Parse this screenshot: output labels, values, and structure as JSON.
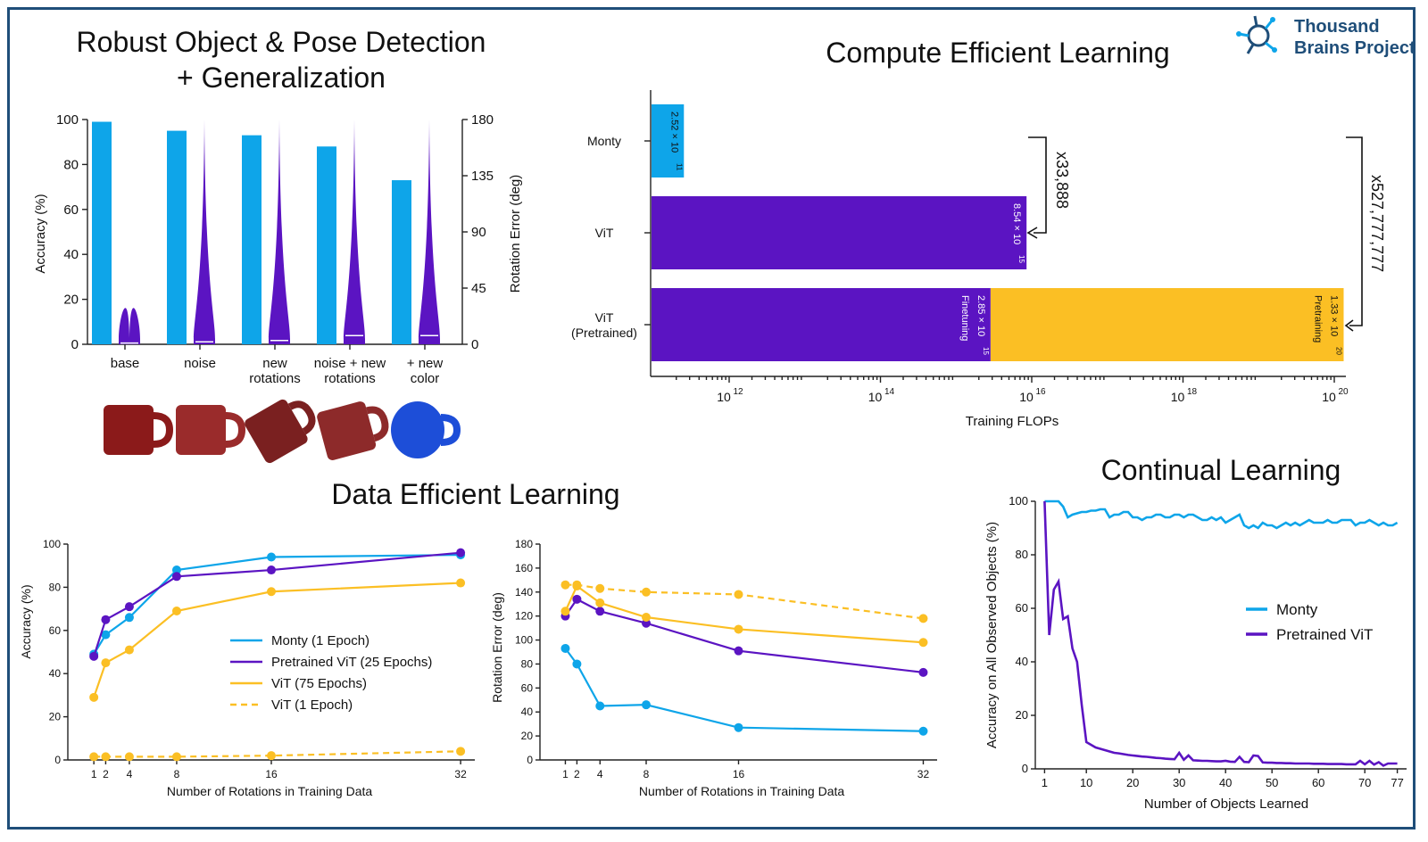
{
  "brand": {
    "line1": "Thousand",
    "line2": "Brains Project",
    "color": "#1f4e79"
  },
  "colors": {
    "monty": "#0ea5e9",
    "vit": "#5b14c2",
    "vit75": "#fbbf24",
    "pretraining": "#fbbf24"
  },
  "chart_data": [
    {
      "id": "robust",
      "type": "bar",
      "title": "Robust Object & Pose Detection",
      "title2": "+ Generalization",
      "ylabel": "Accuracy (%)",
      "y2label": "Rotation Error (deg)",
      "ylim": [
        0,
        100
      ],
      "y2lim": [
        0,
        180
      ],
      "yticks": [
        "0",
        "20",
        "40",
        "60",
        "80",
        "100"
      ],
      "y2ticks": [
        "0",
        "45",
        "90",
        "135",
        "180"
      ],
      "categories": [
        "base",
        "noise",
        "new\nrotations",
        "noise + new\nrotations",
        "+ new\ncolor"
      ],
      "series": [
        {
          "values": [
            99,
            95,
            93,
            88,
            73
          ]
        }
      ],
      "violin_median_deg": [
        1,
        2,
        3,
        7,
        7
      ],
      "violin_max_deg": [
        5,
        180,
        180,
        180,
        180
      ]
    },
    {
      "id": "compute",
      "type": "bar",
      "orientation": "horizontal",
      "title": "Compute Efficient Learning",
      "xlabel": "Training FLOPs",
      "x_scale": "log",
      "xlim": [
        100000000000.0,
        3e+20
      ],
      "xticks": [
        "12",
        "14",
        "16",
        "18",
        "20"
      ],
      "categories": [
        "Monty",
        "ViT",
        "ViT\n(Pretrained)"
      ],
      "bars": [
        {
          "category": "Monty",
          "value": 252000000000.0,
          "label": "2.52 × 10",
          "exp": "11"
        },
        {
          "category": "ViT",
          "value": 8540000000000000.0,
          "label": "8.54 × 10",
          "exp": "15"
        },
        {
          "category": "ViT\n(Pretrained)",
          "value": 2850000000000000.0,
          "label": "2.85 × 10",
          "exp": "15",
          "tag": "Finetuning"
        },
        {
          "category": "ViT\n(Pretrained)",
          "value": 1.33e+20,
          "label": "1.33 × 10",
          "exp": "20",
          "tag": "Pretraining"
        }
      ],
      "annotations": [
        "x33,888",
        "x527,777,777"
      ]
    },
    {
      "id": "data-acc",
      "type": "line",
      "section_title": "Data Efficient Learning",
      "xlabel": "Number of Rotations in Training Data",
      "ylabel": "Accuracy (%)",
      "ylim": [
        0,
        100
      ],
      "x": [
        1,
        2,
        4,
        8,
        16,
        32
      ],
      "xticks": [
        "1",
        "2",
        "4",
        "8",
        "16",
        "32"
      ],
      "yticks": [
        "0",
        "20",
        "40",
        "60",
        "80",
        "100"
      ],
      "series": [
        {
          "name": "Monty (1 Epoch)",
          "values": [
            49,
            58,
            66,
            88,
            94,
            95
          ]
        },
        {
          "name": "Pretrained ViT (25 Epochs)",
          "values": [
            48,
            65,
            71,
            85,
            88,
            96
          ]
        },
        {
          "name": "ViT (75 Epochs)",
          "values": [
            29,
            45,
            51,
            69,
            78,
            82
          ]
        },
        {
          "name": "ViT (1 Epoch)",
          "values": [
            1.5,
            1.5,
            1.5,
            1.5,
            2,
            4
          ]
        }
      ]
    },
    {
      "id": "data-rot",
      "type": "line",
      "xlabel": "Number of Rotations in Training Data",
      "ylabel": "Rotation Error (deg)",
      "ylim": [
        0,
        180
      ],
      "x": [
        1,
        2,
        4,
        8,
        16,
        32
      ],
      "xticks": [
        "1",
        "2",
        "4",
        "8",
        "16",
        "32"
      ],
      "yticks": [
        "0",
        "20",
        "40",
        "60",
        "80",
        "100",
        "120",
        "140",
        "160",
        "180"
      ],
      "series": [
        {
          "values": [
            93,
            80,
            45,
            46,
            27,
            24
          ]
        },
        {
          "values": [
            120,
            134,
            124,
            114,
            91,
            73
          ]
        },
        {
          "values": [
            124,
            145,
            131,
            119,
            109,
            98
          ]
        },
        {
          "values": [
            146,
            146,
            143,
            140,
            138,
            118
          ]
        }
      ]
    },
    {
      "id": "continual",
      "type": "line",
      "title": "Continual Learning",
      "xlabel": "Number of Objects Learned",
      "ylabel": "Accuracy on All Observed Objects (%)",
      "ylim": [
        0,
        100
      ],
      "xlim": [
        0,
        78
      ],
      "xticks": [
        "1",
        "10",
        "20",
        "30",
        "40",
        "50",
        "60",
        "70",
        "77"
      ],
      "xtick_values": [
        1,
        10,
        20,
        30,
        40,
        50,
        60,
        70,
        77
      ],
      "yticks": [
        "0",
        "20",
        "40",
        "60",
        "80",
        "100"
      ],
      "series": [
        {
          "name": "Monty",
          "x": [
            1,
            2,
            3,
            4,
            5,
            6,
            7,
            8,
            9,
            10,
            11,
            12,
            13,
            14,
            15,
            16,
            17,
            18,
            19,
            20,
            21,
            22,
            23,
            24,
            25,
            26,
            27,
            28,
            29,
            30,
            31,
            32,
            33,
            34,
            35,
            36,
            37,
            38,
            39,
            40,
            41,
            42,
            43,
            44,
            45,
            46,
            47,
            48,
            49,
            50,
            51,
            52,
            53,
            54,
            55,
            56,
            57,
            58,
            59,
            60,
            61,
            62,
            63,
            64,
            65,
            66,
            67,
            68,
            69,
            70,
            71,
            72,
            73,
            74,
            75,
            76,
            77
          ],
          "values": [
            100,
            100,
            100,
            100,
            98,
            94,
            95,
            95.5,
            96,
            96,
            96.5,
            96.5,
            97,
            97,
            94,
            95,
            95,
            96,
            96,
            94,
            94,
            93,
            94,
            94,
            95,
            95,
            94,
            94,
            95,
            95,
            94,
            95,
            95,
            94,
            93,
            93,
            94,
            93,
            94,
            92,
            93,
            94,
            95,
            91,
            90,
            91,
            90,
            92,
            91,
            91,
            90,
            91,
            92,
            91,
            92,
            91,
            92,
            93,
            92,
            92,
            92,
            93,
            92,
            92,
            93,
            93,
            93,
            91,
            92,
            92,
            93,
            92,
            91,
            92,
            91,
            91,
            92
          ]
        },
        {
          "name": "Pretrained ViT",
          "x": [
            1,
            2,
            3,
            4,
            5,
            6,
            7,
            8,
            9,
            10,
            11,
            12,
            13,
            14,
            15,
            16,
            17,
            18,
            19,
            20,
            21,
            22,
            23,
            24,
            25,
            26,
            27,
            28,
            29,
            30,
            31,
            32,
            33,
            34,
            35,
            36,
            37,
            38,
            39,
            40,
            41,
            42,
            43,
            44,
            45,
            46,
            47,
            48,
            49,
            50,
            51,
            52,
            53,
            54,
            55,
            56,
            57,
            58,
            59,
            60,
            61,
            62,
            63,
            64,
            65,
            66,
            67,
            68,
            69,
            70,
            71,
            72,
            73,
            74,
            75,
            76,
            77
          ],
          "values": [
            100,
            50,
            67,
            70,
            56,
            57,
            45,
            40,
            24,
            10,
            9,
            8,
            7.5,
            7,
            6.5,
            6,
            5.8,
            5.5,
            5.2,
            5,
            4.8,
            4.6,
            4.5,
            4.3,
            4.1,
            4,
            3.8,
            3.7,
            3.6,
            6,
            3.4,
            5,
            3.2,
            3.1,
            3,
            3,
            2.9,
            2.8,
            2.8,
            3,
            2.7,
            2.6,
            4.5,
            2.6,
            2.5,
            5,
            4.8,
            2.4,
            2.3,
            2.3,
            2.2,
            2.2,
            2.1,
            2.1,
            2,
            2,
            2,
            2,
            1.9,
            1.9,
            1.9,
            1.8,
            1.8,
            1.8,
            1.8,
            1.7,
            1.7,
            1.7,
            3,
            1.7,
            3,
            1.6,
            2.5,
            1.2,
            2,
            2,
            2
          ]
        }
      ]
    }
  ]
}
